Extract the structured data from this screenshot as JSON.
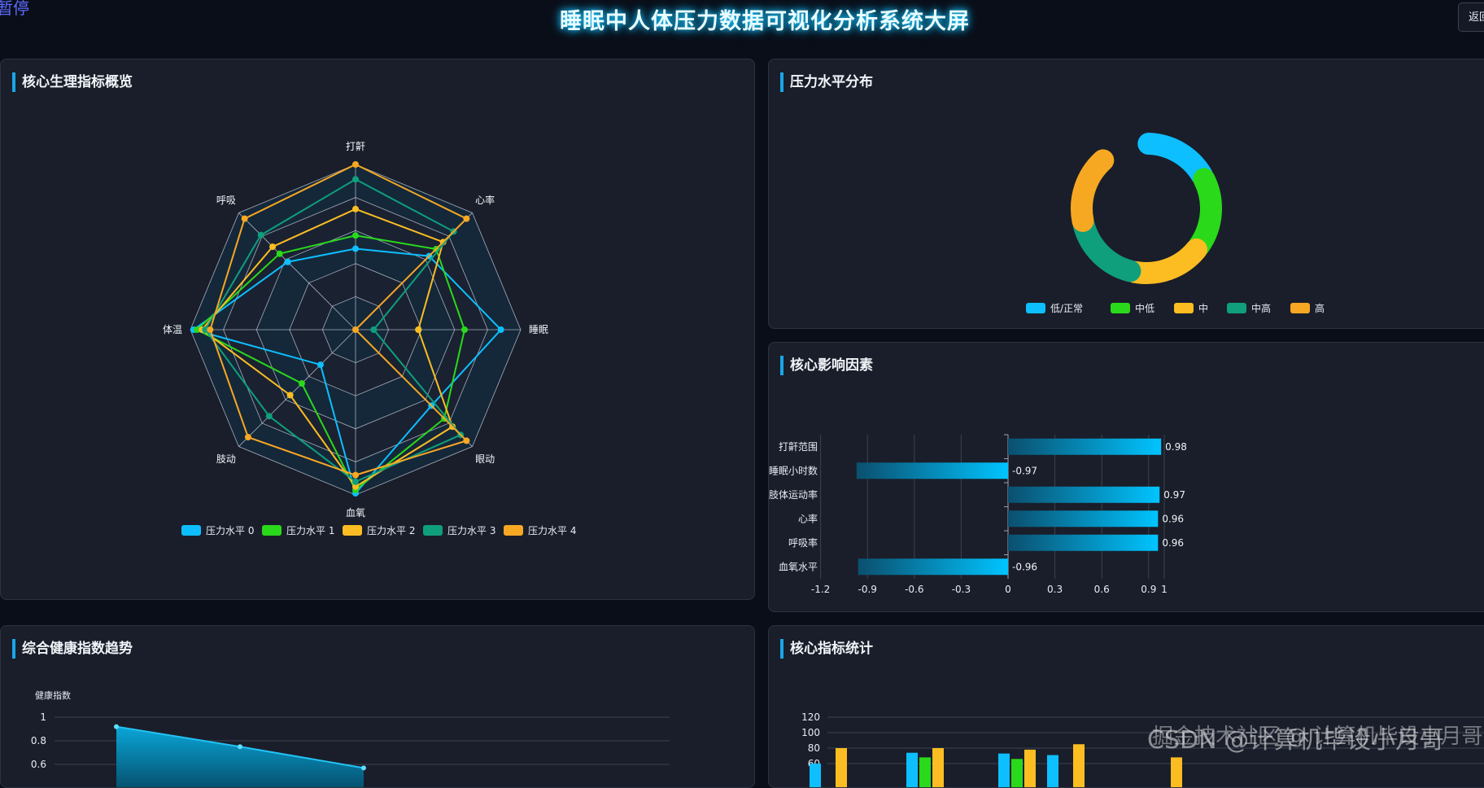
{
  "header": {
    "pause_label": "暂停",
    "title": "睡眠中人体压力数据可视化分析系统大屏",
    "back_label": "返回"
  },
  "colors": {
    "series": [
      "#0dbfff",
      "#2ad91a",
      "#fbbd22",
      "#0f9f7c",
      "#f7a823"
    ],
    "accent": "#1aa6e6",
    "bar": "#00bfff"
  },
  "panels": {
    "radar_title": "核心生理指标概览",
    "donut_title": "压力水平分布",
    "factors_title": "核心影响因素",
    "trend_title": "综合健康指数趋势",
    "stats_title": "核心指标统计"
  },
  "chart_data": [
    {
      "type": "radar",
      "indicators": [
        "打鼾",
        "心率",
        "睡眠",
        "眼动",
        "血氧",
        "肢动",
        "体温",
        "呼吸"
      ],
      "range": [
        0,
        1
      ],
      "series": [
        {
          "name": "压力水平 0",
          "values": [
            0.49,
            0.63,
            0.88,
            0.65,
            0.99,
            0.3,
            0.98,
            0.58
          ]
        },
        {
          "name": "压力水平 1",
          "values": [
            0.57,
            0.69,
            0.66,
            0.76,
            0.97,
            0.46,
            0.96,
            0.65
          ]
        },
        {
          "name": "压力水平 2",
          "values": [
            0.73,
            0.75,
            0.38,
            0.83,
            0.95,
            0.56,
            0.93,
            0.71
          ]
        },
        {
          "name": "压力水平 3",
          "values": [
            0.91,
            0.84,
            0.11,
            0.9,
            0.92,
            0.74,
            0.91,
            0.81
          ]
        },
        {
          "name": "压力水平 4",
          "values": [
            1.0,
            0.95,
            0.0,
            0.95,
            0.88,
            0.92,
            0.88,
            0.95
          ]
        }
      ],
      "legend": "bottom"
    },
    {
      "type": "pie",
      "donut": true,
      "categories": [
        "低/正常",
        "中低",
        "中",
        "中高",
        "高"
      ],
      "values": [
        57,
        62,
        61,
        60,
        59
      ],
      "legend": "bottom"
    },
    {
      "type": "bar",
      "orientation": "horizontal",
      "categories": [
        "打鼾范围",
        "睡眠小时数",
        "肢体运动率",
        "心率",
        "呼吸率",
        "血氧水平"
      ],
      "values": [
        0.98,
        -0.97,
        0.97,
        0.96,
        0.96,
        -0.96
      ],
      "labels": [
        "0.98",
        "-0.97",
        "0.97",
        "0.96",
        "0.96",
        "-0.96"
      ],
      "xlim": [
        -1.2,
        1
      ],
      "xticks": [
        "-1.2",
        "-0.9",
        "-0.6",
        "-0.3",
        "0",
        "0.3",
        "0.6",
        "0.9",
        "1"
      ],
      "grid": true
    },
    {
      "type": "area",
      "ylabel": "健康指数",
      "yticks": [
        "1",
        "0.8",
        "0.6"
      ],
      "values": [
        0.92,
        0.75,
        0.57
      ],
      "grid": true
    },
    {
      "type": "bar",
      "yticks": [
        "120",
        "100",
        "80",
        "60"
      ],
      "groups": [
        {
          "values": [
            60,
            null,
            80
          ]
        },
        {
          "values": [
            74,
            68,
            80
          ]
        },
        {
          "values": [
            73,
            66,
            78
          ]
        },
        {
          "values": [
            71,
            null,
            85
          ]
        },
        {
          "values": [
            null,
            null,
            68
          ]
        }
      ],
      "grid": true
    }
  ],
  "watermark": {
    "text1": "CSDN @计算机毕设小月哥",
    "text2": "掘金技术社区 @ 计算机毕设小月哥"
  }
}
